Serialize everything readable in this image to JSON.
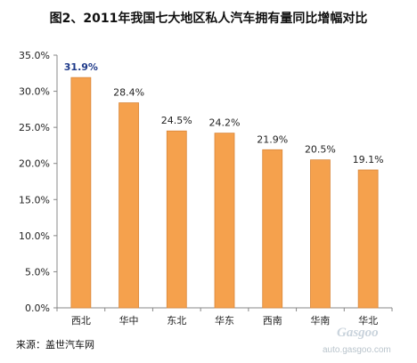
{
  "title": "图2、2011年我国七大地区私人汽车拥有量同比增幅对比",
  "source": "来源：盖世汽车网",
  "watermark": {
    "brand": "Gasgoo",
    "url": "auto.gasgoo.com"
  },
  "colors": {
    "bar": "#F5A14D",
    "bar_border": "#D9873A",
    "highlight_label": "#1F3A8A",
    "label": "#222222",
    "axis": "#888888"
  },
  "chart_data": {
    "type": "bar",
    "categories": [
      "西北",
      "华中",
      "东北",
      "华东",
      "西南",
      "华南",
      "华北"
    ],
    "values": [
      31.9,
      28.4,
      24.5,
      24.2,
      21.9,
      20.5,
      19.1
    ],
    "data_labels": [
      "31.9%",
      "28.4%",
      "24.5%",
      "24.2%",
      "21.9%",
      "20.5%",
      "19.1%"
    ],
    "highlight_index": 0,
    "ylim": [
      0,
      35
    ],
    "yticks": [
      0,
      5,
      10,
      15,
      20,
      25,
      30,
      35
    ],
    "ytick_labels": [
      "0.0%",
      "5.0%",
      "10.0%",
      "15.0%",
      "20.0%",
      "25.0%",
      "30.0%",
      "35.0%"
    ],
    "grid": false,
    "legend": "none"
  }
}
